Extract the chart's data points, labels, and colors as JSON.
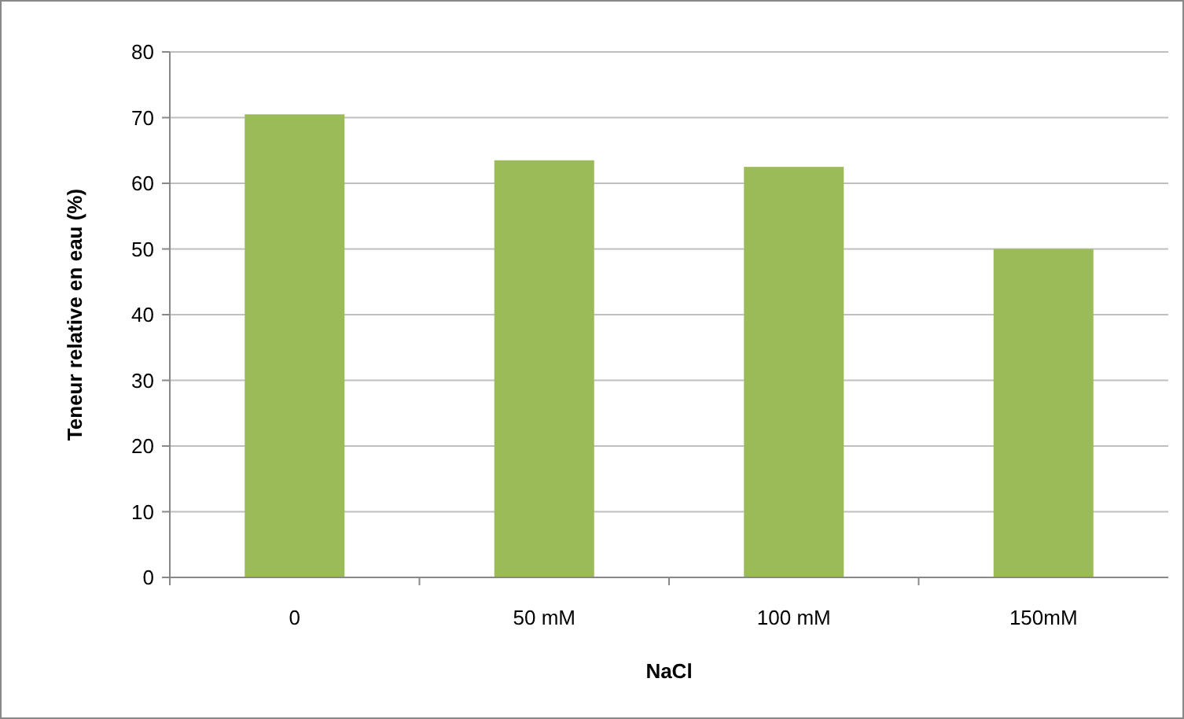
{
  "chart_data": {
    "type": "bar",
    "xlabel": "NaCl",
    "ylabel": "Teneur relative en eau (%)",
    "categories": [
      "0",
      "50 mM",
      "100 mM",
      "150mM"
    ],
    "values": [
      70.5,
      63.5,
      62.5,
      50
    ],
    "color": "#9bbb59",
    "ylim": [
      0,
      80
    ],
    "yticks": [
      0,
      10,
      20,
      30,
      40,
      50,
      60,
      70,
      80
    ],
    "grid": "y"
  }
}
